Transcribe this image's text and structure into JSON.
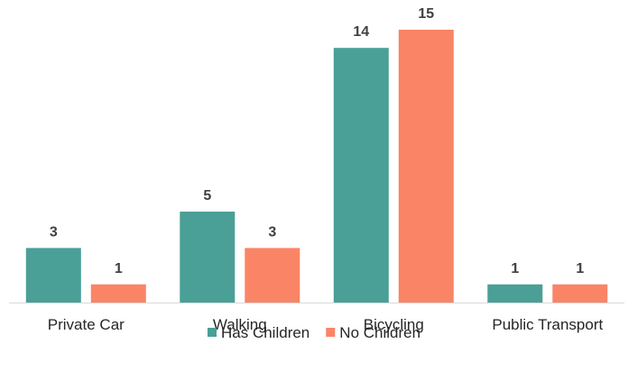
{
  "chart_data": {
    "type": "bar",
    "title": "",
    "xlabel": "",
    "ylabel": "",
    "categories": [
      "Private Car",
      "Walking",
      "Bicycling",
      "Public Transport"
    ],
    "series": [
      {
        "name": "Has Children",
        "color": "#4A9F97",
        "values": [
          3,
          5,
          14,
          1
        ]
      },
      {
        "name": "No Children",
        "color": "#FA8466",
        "values": [
          1,
          3,
          15,
          1
        ]
      }
    ],
    "ylim": [
      0,
      15
    ],
    "grid": false,
    "data_labels": true,
    "legend": "bottom-center"
  }
}
